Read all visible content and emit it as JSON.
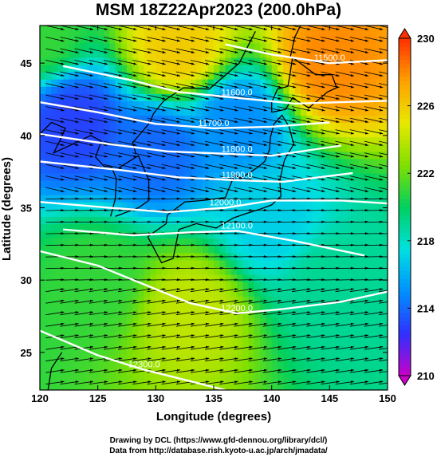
{
  "title": "MSM 18Z22Apr2023 (200.0hPa)",
  "footer": {
    "line1": "Drawing by DCL (https://www.gfd-dennou.org/library/dcl/)",
    "line2": "Data from http://database.rish.kyoto-u.ac.jp/arch/jmadata/"
  },
  "chart_data": {
    "type": "heatmap",
    "xlabel": "Longitude (degrees)",
    "ylabel": "Latitude  (degrees)",
    "xlim": [
      120,
      150
    ],
    "ylim": [
      22.4,
      47.6
    ],
    "xticks": [
      120,
      125,
      130,
      135,
      140,
      145,
      150
    ],
    "yticks": [
      25,
      30,
      35,
      40,
      45
    ],
    "colorbar": {
      "min": 210,
      "max": 230,
      "ticks": [
        210,
        214,
        218,
        222,
        226,
        230
      ],
      "colors": [
        "#c800c8",
        "#3030ff",
        "#0090ff",
        "#00e0e0",
        "#00d060",
        "#80e000",
        "#e8e800",
        "#ffa000",
        "#ff3000"
      ]
    },
    "temperature_field_samples": [
      {
        "lon": 120,
        "lat": 47,
        "value": 221
      },
      {
        "lon": 123,
        "lat": 41,
        "value": 213
      },
      {
        "lon": 130,
        "lat": 39,
        "value": 214
      },
      {
        "lon": 137,
        "lat": 41,
        "value": 215
      },
      {
        "lon": 145,
        "lat": 45,
        "value": 228
      },
      {
        "lon": 132,
        "lat": 46,
        "value": 226
      },
      {
        "lon": 133,
        "lat": 28,
        "value": 224
      },
      {
        "lon": 125,
        "lat": 30,
        "value": 221
      },
      {
        "lon": 145,
        "lat": 30,
        "value": 219
      },
      {
        "lon": 140,
        "lat": 34,
        "value": 217
      }
    ],
    "height_contours": [
      {
        "label": "11500.0",
        "points": [
          [
            136,
            46.3
          ],
          [
            140,
            45.6
          ],
          [
            145,
            45.0
          ],
          [
            150,
            45.2
          ]
        ]
      },
      {
        "label": "11600.0",
        "points": [
          [
            122,
            44.8
          ],
          [
            128,
            43.8
          ],
          [
            132,
            43.0
          ],
          [
            137,
            42.6
          ],
          [
            142,
            42.2
          ],
          [
            150,
            42.4
          ]
        ]
      },
      {
        "label": "11700.0",
        "points": [
          [
            120,
            42.3
          ],
          [
            125,
            41.6
          ],
          [
            130,
            40.8
          ],
          [
            135,
            40.5
          ],
          [
            140,
            40.6
          ],
          [
            145,
            40.9
          ]
        ]
      },
      {
        "label": "11800.0",
        "points": [
          [
            120,
            40.1
          ],
          [
            126,
            39.4
          ],
          [
            131,
            38.9
          ],
          [
            137,
            38.7
          ],
          [
            140,
            38.6
          ],
          [
            146,
            39.3
          ]
        ]
      },
      {
        "label": "11900.0",
        "points": [
          [
            120,
            38.2
          ],
          [
            127,
            37.6
          ],
          [
            132,
            37.1
          ],
          [
            137,
            36.9
          ],
          [
            141,
            36.8
          ],
          [
            147,
            37.4
          ]
        ]
      },
      {
        "label": "12000.0",
        "points": [
          [
            120,
            35.4
          ],
          [
            126,
            35.0
          ],
          [
            131,
            34.7
          ],
          [
            136,
            35.0
          ],
          [
            140,
            35.5
          ],
          [
            146,
            35.5
          ],
          [
            150,
            35.3
          ]
        ]
      },
      {
        "label": "12100.0",
        "points": [
          [
            122,
            33.5
          ],
          [
            128,
            33.1
          ],
          [
            133,
            33.3
          ],
          [
            137,
            33.4
          ],
          [
            142,
            32.7
          ],
          [
            148,
            31.7
          ]
        ]
      },
      {
        "label": "12200.0",
        "points": [
          [
            120,
            32.0
          ],
          [
            125,
            31.0
          ],
          [
            129,
            29.7
          ],
          [
            133,
            28.4
          ],
          [
            137,
            27.7
          ],
          [
            141,
            28.0
          ],
          [
            146,
            28.5
          ],
          [
            150,
            29.2
          ]
        ]
      },
      {
        "label": "12300.0",
        "points": [
          [
            120,
            26.5
          ],
          [
            125,
            24.8
          ],
          [
            129,
            23.8
          ],
          [
            133,
            23.0
          ],
          [
            136,
            22.4
          ]
        ]
      }
    ]
  }
}
